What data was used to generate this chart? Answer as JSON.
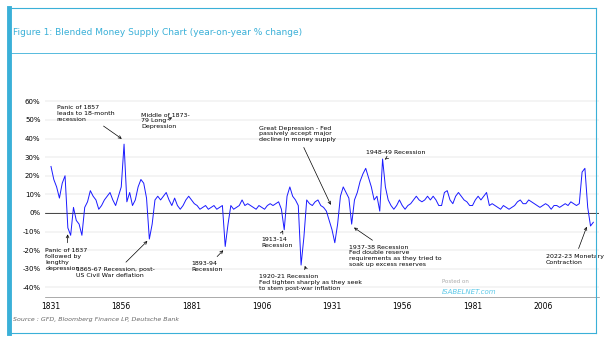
{
  "title": "Figure 1: Blended Money Supply Chart (year-on-year % change)",
  "title_color": "#3ab0d8",
  "source_text": "Source : GFD, Bloomberg Finance LP, Deutsche Bank",
  "watermark_line1": "Posted on",
  "watermark_line2": "ISABELNET.com",
  "line_color": "#1a1aff",
  "bg_color": "#ffffff",
  "border_color": "#3ab0d8",
  "ytick_labels": [
    "-40%",
    "-30%",
    "-20%",
    "-10%",
    "0%",
    "10%",
    "20%",
    "30%",
    "40%",
    "50%",
    "60%"
  ],
  "ytick_vals": [
    -40,
    -30,
    -20,
    -10,
    0,
    10,
    20,
    30,
    40,
    50,
    60
  ],
  "xtick_vals": [
    1831,
    1856,
    1881,
    1906,
    1931,
    1956,
    1981,
    2006
  ],
  "ylim": [
    -45,
    65
  ],
  "xlim": [
    1829,
    2026
  ],
  "data_x": [
    1831,
    1832,
    1833,
    1834,
    1835,
    1836,
    1837,
    1838,
    1839,
    1840,
    1841,
    1842,
    1843,
    1844,
    1845,
    1846,
    1847,
    1848,
    1849,
    1850,
    1851,
    1852,
    1853,
    1854,
    1855,
    1856,
    1857,
    1858,
    1859,
    1860,
    1861,
    1862,
    1863,
    1864,
    1865,
    1866,
    1867,
    1868,
    1869,
    1870,
    1871,
    1872,
    1873,
    1874,
    1875,
    1876,
    1877,
    1878,
    1879,
    1880,
    1881,
    1882,
    1883,
    1884,
    1885,
    1886,
    1887,
    1888,
    1889,
    1890,
    1891,
    1892,
    1893,
    1894,
    1895,
    1896,
    1897,
    1898,
    1899,
    1900,
    1901,
    1902,
    1903,
    1904,
    1905,
    1906,
    1907,
    1908,
    1909,
    1910,
    1911,
    1912,
    1913,
    1914,
    1915,
    1916,
    1917,
    1918,
    1919,
    1920,
    1921,
    1922,
    1923,
    1924,
    1925,
    1926,
    1927,
    1928,
    1929,
    1930,
    1931,
    1932,
    1933,
    1934,
    1935,
    1936,
    1937,
    1938,
    1939,
    1940,
    1941,
    1942,
    1943,
    1944,
    1945,
    1946,
    1947,
    1948,
    1949,
    1950,
    1951,
    1952,
    1953,
    1954,
    1955,
    1956,
    1957,
    1958,
    1959,
    1960,
    1961,
    1962,
    1963,
    1964,
    1965,
    1966,
    1967,
    1968,
    1969,
    1970,
    1971,
    1972,
    1973,
    1974,
    1975,
    1976,
    1977,
    1978,
    1979,
    1980,
    1981,
    1982,
    1983,
    1984,
    1985,
    1986,
    1987,
    1988,
    1989,
    1990,
    1991,
    1992,
    1993,
    1994,
    1995,
    1996,
    1997,
    1998,
    1999,
    2000,
    2001,
    2002,
    2003,
    2004,
    2005,
    2006,
    2007,
    2008,
    2009,
    2010,
    2011,
    2012,
    2013,
    2014,
    2015,
    2016,
    2017,
    2018,
    2019,
    2020,
    2021,
    2022,
    2023,
    2024
  ],
  "data_y": [
    25,
    18,
    14,
    8,
    16,
    20,
    -8,
    -12,
    3,
    -4,
    -6,
    -12,
    3,
    6,
    12,
    9,
    7,
    2,
    4,
    7,
    9,
    11,
    7,
    4,
    9,
    14,
    37,
    6,
    11,
    4,
    7,
    14,
    18,
    16,
    8,
    -14,
    -6,
    7,
    9,
    7,
    9,
    11,
    7,
    4,
    8,
    4,
    2,
    4,
    7,
    9,
    7,
    5,
    4,
    2,
    3,
    4,
    2,
    3,
    4,
    2,
    3,
    4,
    -18,
    -6,
    4,
    2,
    3,
    4,
    7,
    4,
    5,
    4,
    3,
    2,
    4,
    3,
    2,
    4,
    5,
    4,
    5,
    6,
    2,
    -9,
    9,
    14,
    9,
    7,
    4,
    -28,
    -13,
    7,
    5,
    4,
    6,
    7,
    4,
    3,
    1,
    -4,
    -9,
    -16,
    -6,
    9,
    14,
    11,
    8,
    -6,
    7,
    11,
    17,
    21,
    24,
    19,
    14,
    7,
    9,
    1,
    29,
    14,
    7,
    4,
    2,
    4,
    7,
    4,
    2,
    4,
    5,
    7,
    9,
    7,
    6,
    7,
    9,
    7,
    9,
    7,
    4,
    4,
    11,
    12,
    7,
    5,
    9,
    11,
    9,
    7,
    6,
    4,
    4,
    7,
    9,
    7,
    9,
    11,
    4,
    5,
    4,
    3,
    2,
    4,
    3,
    2,
    3,
    4,
    6,
    7,
    5,
    5,
    7,
    6,
    5,
    4,
    3,
    4,
    5,
    4,
    2,
    4,
    4,
    3,
    4,
    5,
    4,
    6,
    5,
    4,
    5,
    22,
    24,
    3,
    -7,
    -5
  ]
}
